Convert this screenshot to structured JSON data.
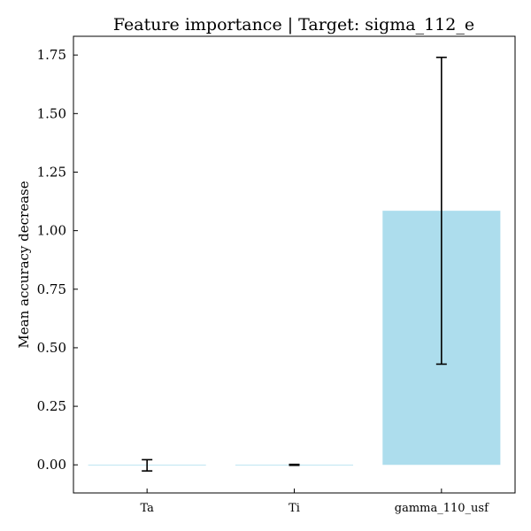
{
  "chart_data": {
    "type": "bar",
    "title": "Feature importance | Target: sigma_112_e",
    "xlabel": "",
    "ylabel": "Mean accuracy decrease",
    "categories": [
      "Ta",
      "Ti",
      "gamma_110_usf"
    ],
    "values": [
      -0.002,
      0.0,
      1.085
    ],
    "errors": [
      0.024,
      0.002,
      0.655
    ],
    "ylim": [
      -0.12,
      1.83
    ],
    "yticks": [
      0.0,
      0.25,
      0.5,
      0.75,
      1.0,
      1.25,
      1.5,
      1.75
    ],
    "ytick_labels": [
      "0.00",
      "0.25",
      "0.50",
      "0.75",
      "1.00",
      "1.25",
      "1.50",
      "1.75"
    ],
    "bar_color": "#ADDDED",
    "error_color": "#000000",
    "grid": false,
    "legend": "none"
  }
}
